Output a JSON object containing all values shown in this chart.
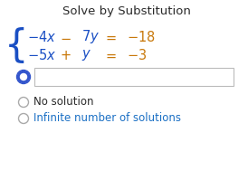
{
  "title": "Solve by Substitution",
  "title_fontsize": 9.5,
  "title_color": "#2a2a2a",
  "eq_var_color": "#1a4fc4",
  "eq_op_color": "#c8780a",
  "brace_color": "#1a4fc4",
  "radio_selected_fill": "#3355cc",
  "radio_selected_ring": "#3355cc",
  "radio_unselected_color": "#aaaaaa",
  "option1": "No solution",
  "option1_color": "#2a2a2a",
  "option2": "Infinite number of solutions",
  "option2_color": "#1a6fc4",
  "option_fontsize": 8.5,
  "background_color": "#ffffff",
  "box_edge_color": "#bbbbbb",
  "figw": 2.74,
  "figh": 1.99,
  "dpi": 100
}
